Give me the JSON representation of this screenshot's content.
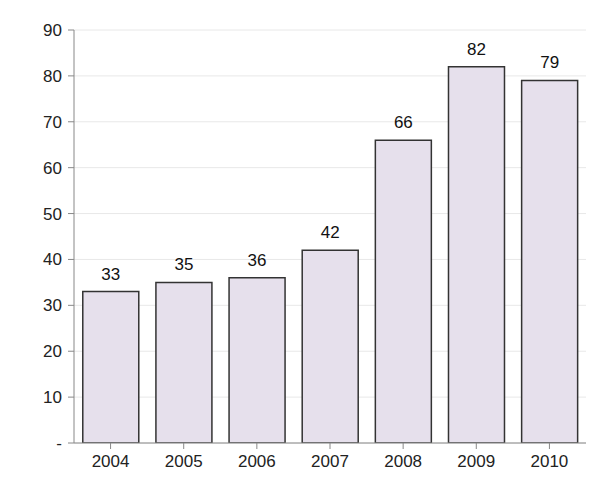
{
  "chart_data": {
    "type": "bar",
    "categories": [
      "2004",
      "2005",
      "2006",
      "2007",
      "2008",
      "2009",
      "2010"
    ],
    "values": [
      33,
      35,
      36,
      42,
      66,
      82,
      79
    ],
    "color": "#e6e0ec",
    "ylim": [
      0,
      90
    ],
    "yticks": [
      {
        "value": 0,
        "label": "-"
      },
      10,
      20,
      30,
      40,
      50,
      60,
      70,
      80,
      90
    ],
    "grid": true,
    "data_labels": true
  }
}
